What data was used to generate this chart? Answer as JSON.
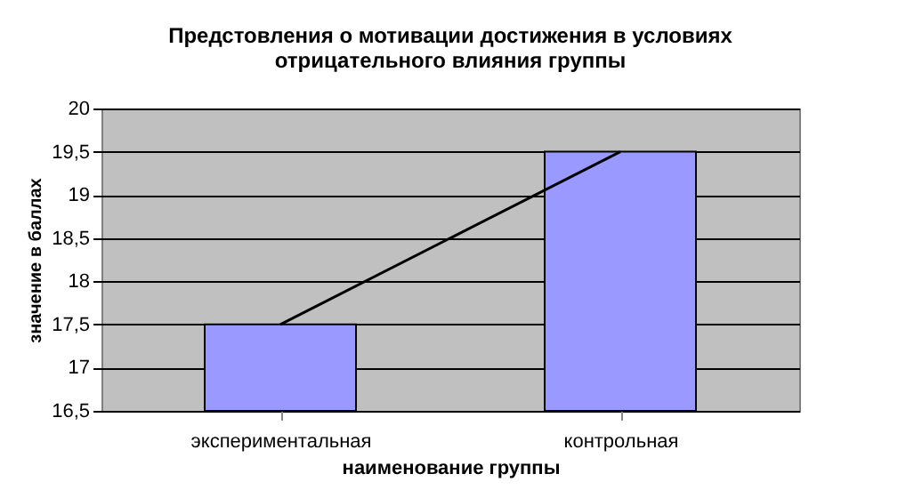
{
  "chart_data": {
    "type": "bar",
    "title": "Предстовления о мотивации достижения в условиях\nотрицательного влияния группы",
    "xlabel": "наименование группы",
    "ylabel": "значение в баллах",
    "categories": [
      "экспериментальная",
      "контрольная"
    ],
    "series": [
      {
        "color": "#9999ff",
        "values": [
          17.5,
          19.5
        ]
      },
      {
        "type": "line",
        "color": "#000000",
        "values": [
          17.5,
          19.5
        ]
      }
    ],
    "ylim": [
      16.5,
      20
    ],
    "yticks": [
      {
        "value": 16.5,
        "label": "16,5"
      },
      17,
      {
        "value": 17.5,
        "label": "17,5"
      },
      18,
      {
        "value": 18.5,
        "label": "18,5"
      },
      19,
      {
        "value": 19.5,
        "label": "19,5"
      },
      20
    ],
    "grid": "y",
    "legend": false,
    "marker": "none",
    "line_style": "solid"
  }
}
